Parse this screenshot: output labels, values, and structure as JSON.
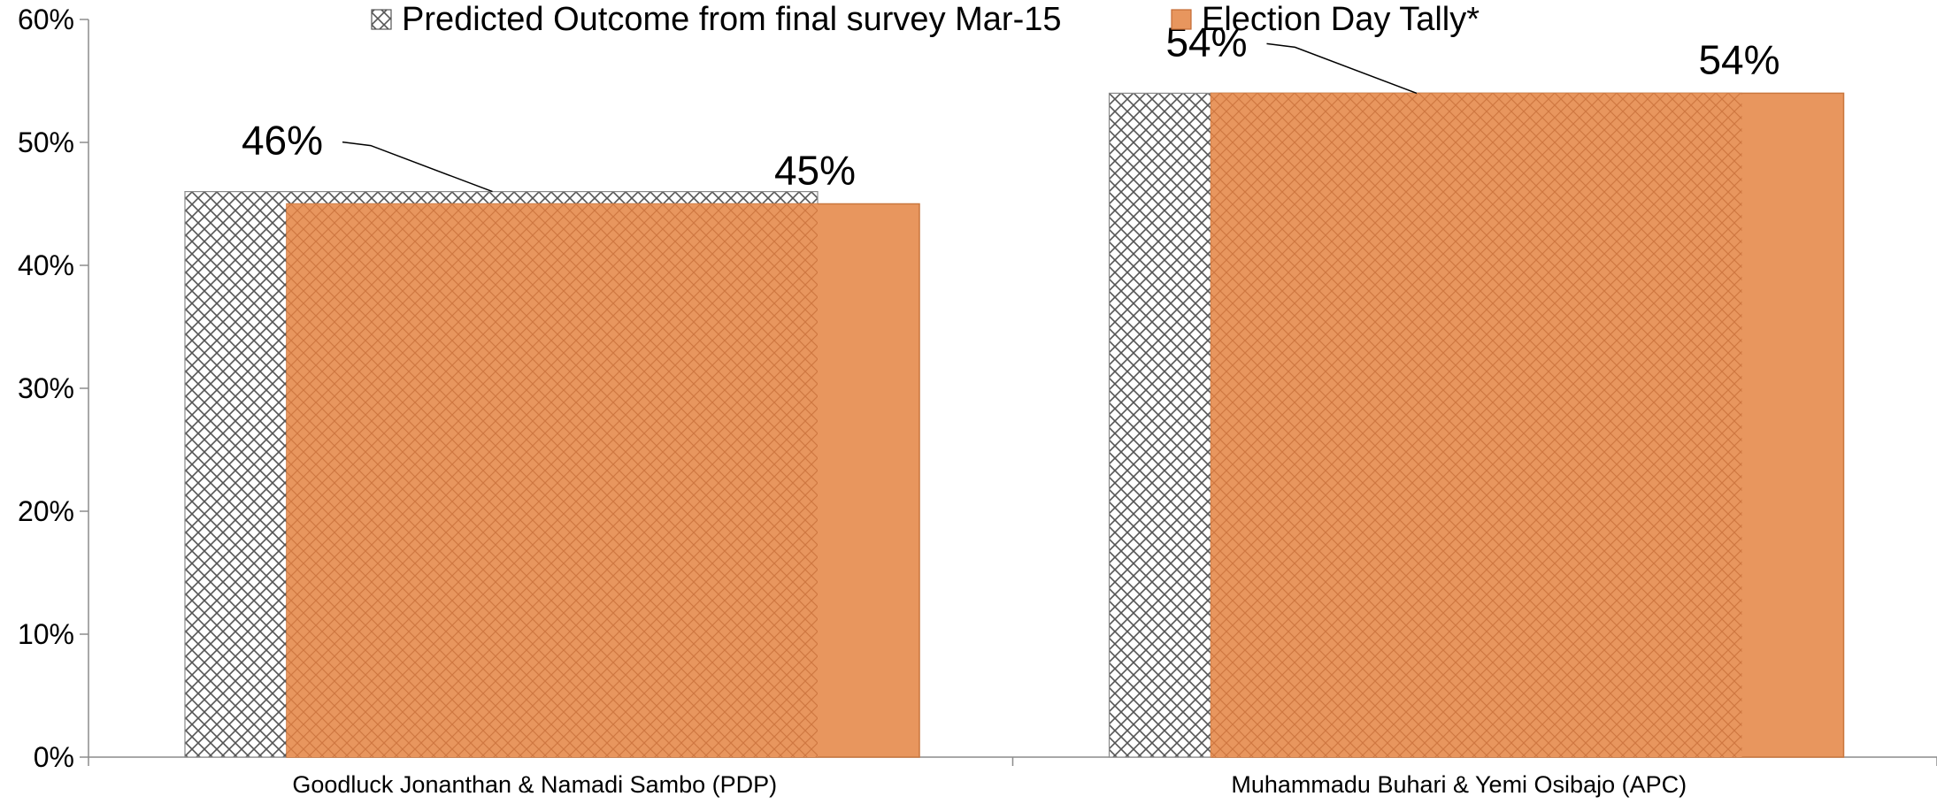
{
  "chart_data": {
    "type": "bar",
    "categories": [
      "Goodluck Jonanthan & Namadi Sambo (PDP)",
      "Muhammadu Buhari & Yemi Osibajo (APC)"
    ],
    "series": [
      {
        "name": "Predicted Outcome from final survey Mar-15",
        "values": [
          46,
          54
        ],
        "labels": [
          "46%",
          "54%"
        ],
        "pattern": "crosshatch"
      },
      {
        "name": "Election Day Tally*",
        "values": [
          45,
          54
        ],
        "labels": [
          "45%",
          "54%"
        ],
        "color": "#e8965e"
      }
    ],
    "yticks": [
      "0%",
      "10%",
      "20%",
      "30%",
      "40%",
      "50%",
      "60%"
    ],
    "ylim": [
      0,
      60
    ],
    "legend_position": "top",
    "grid": false
  }
}
